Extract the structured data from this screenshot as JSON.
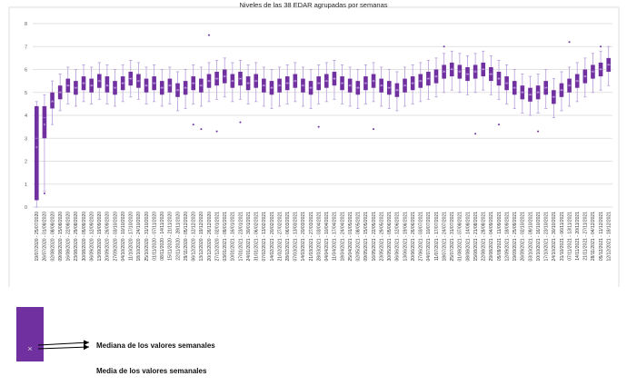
{
  "colors": {
    "box": "#7030a0",
    "whisker": "#b49ddb",
    "median_line": "#9d73c8",
    "mean_marker": "#d5c5ec",
    "grid": "#d9d9d9",
    "axis_text": "#595959",
    "tick_text": "#333333",
    "frame": "#dcdcdc"
  },
  "legend": {
    "swatch_color": "#7030a0",
    "x_mark": "×",
    "median_label": "Mediana de los valores semanales",
    "mean_label": "Media de los valores semanales"
  },
  "chart_data": {
    "type": "boxplot",
    "title": "Niveles de las 38 EDAR agrupadas por semanas",
    "ylabel": "",
    "xlabel": "",
    "ylim": [
      0,
      8
    ],
    "yticks": [
      0,
      1,
      2,
      3,
      4,
      5,
      6,
      7,
      8
    ],
    "grid": true,
    "boxes_format": [
      "low_whisker",
      "q1",
      "median",
      "q3",
      "high_whisker",
      "mean"
    ],
    "categories": [
      "19/07/2020 - 25/07/2020",
      "26/07/2020 - 01/08/2020",
      "02/08/2020 - 08/08/2020",
      "09/08/2020 - 15/08/2020",
      "16/08/2020 - 22/08/2020",
      "23/08/2020 - 29/08/2020",
      "30/08/2020 - 05/09/2020",
      "06/09/2020 - 12/09/2020",
      "13/09/2020 - 19/09/2020",
      "20/09/2020 - 26/09/2020",
      "27/09/2020 - 03/10/2020",
      "04/10/2020 - 10/10/2020",
      "11/10/2020 - 17/10/2020",
      "18/10/2020 - 24/10/2020",
      "25/10/2020 - 31/10/2020",
      "01/11/2020 - 07/11/2020",
      "08/11/2020 - 14/11/2020",
      "15/11/2020 - 21/11/2020",
      "22/11/2020 - 28/11/2020",
      "29/11/2020 - 05/12/2020",
      "06/12/2020 - 12/12/2020",
      "13/12/2020 - 19/12/2020",
      "20/12/2020 - 26/12/2020",
      "27/12/2020 - 02/01/2021",
      "03/01/2021 - 09/01/2021",
      "10/01/2021 - 16/01/2021",
      "17/01/2021 - 23/01/2021",
      "24/01/2021 - 30/01/2021",
      "31/01/2021 - 06/02/2021",
      "07/02/2021 - 13/02/2021",
      "14/02/2021 - 20/02/2021",
      "21/02/2021 - 27/02/2021",
      "28/02/2021 - 06/03/2021",
      "07/03/2021 - 13/03/2021",
      "14/03/2021 - 20/03/2021",
      "21/03/2021 - 27/03/2021",
      "28/03/2021 - 03/04/2021",
      "04/04/2021 - 10/04/2021",
      "11/04/2021 - 17/04/2021",
      "18/04/2021 - 24/04/2021",
      "25/04/2021 - 01/05/2021",
      "02/05/2021 - 08/05/2021",
      "09/05/2021 - 15/05/2021",
      "16/05/2021 - 22/05/2021",
      "23/05/2021 - 29/05/2021",
      "30/05/2021 - 05/06/2021",
      "06/06/2021 - 12/06/2021",
      "13/06/2021 - 19/06/2021",
      "20/06/2021 - 26/06/2021",
      "27/06/2021 - 03/07/2021",
      "04/07/2021 - 10/07/2021",
      "11/07/2021 - 17/07/2021",
      "18/07/2021 - 24/07/2021",
      "25/07/2021 - 31/07/2021",
      "01/08/2021 - 07/08/2021",
      "08/08/2021 - 14/08/2021",
      "15/08/2021 - 21/08/2021",
      "22/08/2021 - 28/08/2021",
      "29/08/2021 - 04/09/2021",
      "05/09/2021 - 11/09/2021",
      "12/09/2021 - 18/09/2021",
      "19/09/2021 - 25/09/2021",
      "26/09/2021 - 02/10/2021",
      "03/10/2021 - 09/10/2021",
      "10/10/2021 - 16/10/2021",
      "17/10/2021 - 23/10/2021",
      "24/10/2021 - 30/10/2021",
      "31/10/2021 - 06/11/2021",
      "07/11/2021 - 13/11/2021",
      "14/11/2021 - 20/11/2021",
      "21/11/2021 - 27/11/2021",
      "28/11/2021 - 04/12/2021",
      "05/12/2021 - 11/12/2021",
      "12/12/2021 - 18/12/2021"
    ],
    "boxes": [
      [
        0.0,
        0.3,
        3.0,
        4.4,
        4.6,
        2.6
      ],
      [
        0.7,
        3.0,
        3.9,
        4.4,
        4.9,
        3.6
      ],
      [
        3.6,
        4.3,
        4.6,
        5.0,
        5.5,
        4.6
      ],
      [
        4.2,
        4.7,
        5.0,
        5.3,
        5.8,
        5.0
      ],
      [
        4.5,
        5.0,
        5.3,
        5.6,
        6.1,
        5.3
      ],
      [
        4.4,
        4.9,
        5.2,
        5.5,
        6.0,
        5.2
      ],
      [
        4.6,
        5.1,
        5.4,
        5.7,
        6.2,
        5.4
      ],
      [
        4.5,
        5.0,
        5.3,
        5.6,
        6.1,
        5.3
      ],
      [
        4.7,
        5.2,
        5.5,
        5.8,
        6.3,
        5.5
      ],
      [
        4.5,
        5.0,
        5.3,
        5.7,
        6.2,
        5.3
      ],
      [
        4.4,
        4.9,
        5.2,
        5.5,
        6.0,
        5.2
      ],
      [
        4.6,
        5.1,
        5.4,
        5.7,
        6.2,
        5.4
      ],
      [
        4.8,
        5.3,
        5.6,
        5.9,
        6.4,
        5.6
      ],
      [
        4.7,
        5.2,
        5.5,
        5.8,
        6.3,
        5.5
      ],
      [
        4.5,
        5.0,
        5.3,
        5.6,
        6.1,
        5.3
      ],
      [
        4.6,
        5.1,
        5.4,
        5.7,
        6.2,
        5.4
      ],
      [
        4.4,
        4.9,
        5.2,
        5.5,
        6.0,
        5.2
      ],
      [
        4.5,
        5.0,
        5.3,
        5.6,
        6.1,
        5.3
      ],
      [
        4.2,
        4.8,
        5.1,
        5.4,
        5.9,
        5.1
      ],
      [
        4.3,
        4.9,
        5.2,
        5.5,
        6.0,
        5.2
      ],
      [
        4.5,
        5.1,
        5.4,
        5.7,
        6.2,
        5.4
      ],
      [
        4.4,
        5.0,
        5.3,
        5.6,
        6.1,
        5.3
      ],
      [
        4.6,
        5.2,
        5.5,
        5.8,
        6.3,
        5.5
      ],
      [
        4.7,
        5.3,
        5.6,
        5.9,
        6.4,
        5.6
      ],
      [
        4.8,
        5.4,
        5.7,
        6.0,
        6.5,
        5.7
      ],
      [
        4.6,
        5.2,
        5.5,
        5.8,
        6.3,
        5.5
      ],
      [
        4.7,
        5.3,
        5.6,
        5.9,
        6.4,
        5.6
      ],
      [
        4.5,
        5.1,
        5.4,
        5.7,
        6.2,
        5.4
      ],
      [
        4.6,
        5.2,
        5.5,
        5.8,
        6.3,
        5.5
      ],
      [
        4.4,
        5.0,
        5.3,
        5.6,
        6.1,
        5.3
      ],
      [
        4.3,
        4.9,
        5.2,
        5.5,
        6.0,
        5.2
      ],
      [
        4.4,
        5.0,
        5.3,
        5.6,
        6.1,
        5.3
      ],
      [
        4.5,
        5.1,
        5.4,
        5.7,
        6.2,
        5.4
      ],
      [
        4.6,
        5.2,
        5.5,
        5.8,
        6.3,
        5.5
      ],
      [
        4.4,
        5.0,
        5.3,
        5.6,
        6.1,
        5.3
      ],
      [
        4.3,
        4.9,
        5.2,
        5.5,
        6.0,
        5.2
      ],
      [
        4.5,
        5.1,
        5.4,
        5.7,
        6.2,
        5.4
      ],
      [
        4.6,
        5.2,
        5.5,
        5.8,
        6.3,
        5.5
      ],
      [
        4.7,
        5.3,
        5.6,
        5.9,
        6.4,
        5.6
      ],
      [
        4.5,
        5.1,
        5.4,
        5.7,
        6.2,
        5.4
      ],
      [
        4.4,
        5.0,
        5.3,
        5.6,
        6.1,
        5.3
      ],
      [
        4.3,
        4.9,
        5.2,
        5.5,
        6.0,
        5.2
      ],
      [
        4.5,
        5.1,
        5.4,
        5.7,
        6.2,
        5.4
      ],
      [
        4.6,
        5.2,
        5.5,
        5.8,
        6.3,
        5.5
      ],
      [
        4.4,
        5.0,
        5.3,
        5.6,
        6.1,
        5.3
      ],
      [
        4.3,
        4.9,
        5.2,
        5.5,
        6.0,
        5.2
      ],
      [
        4.2,
        4.8,
        5.1,
        5.4,
        5.9,
        5.1
      ],
      [
        4.4,
        5.0,
        5.3,
        5.6,
        6.1,
        5.3
      ],
      [
        4.5,
        5.1,
        5.4,
        5.7,
        6.2,
        5.4
      ],
      [
        4.6,
        5.2,
        5.5,
        5.8,
        6.3,
        5.5
      ],
      [
        4.7,
        5.3,
        5.6,
        5.9,
        6.4,
        5.6
      ],
      [
        4.8,
        5.4,
        5.7,
        6.0,
        6.5,
        5.7
      ],
      [
        5.0,
        5.6,
        5.9,
        6.2,
        6.7,
        5.9
      ],
      [
        5.1,
        5.7,
        6.0,
        6.3,
        6.8,
        6.0
      ],
      [
        5.0,
        5.6,
        5.9,
        6.2,
        6.7,
        5.9
      ],
      [
        4.9,
        5.5,
        5.8,
        6.1,
        6.6,
        5.8
      ],
      [
        5.0,
        5.6,
        5.9,
        6.2,
        6.7,
        5.9
      ],
      [
        5.1,
        5.7,
        6.0,
        6.3,
        6.8,
        6.0
      ],
      [
        4.9,
        5.5,
        5.8,
        6.1,
        6.6,
        5.8
      ],
      [
        4.7,
        5.3,
        5.6,
        5.9,
        6.4,
        5.6
      ],
      [
        4.5,
        5.1,
        5.4,
        5.7,
        6.2,
        5.4
      ],
      [
        4.3,
        4.9,
        5.2,
        5.5,
        6.0,
        5.2
      ],
      [
        4.1,
        4.7,
        5.0,
        5.3,
        5.8,
        5.0
      ],
      [
        4.0,
        4.6,
        4.9,
        5.2,
        5.7,
        4.9
      ],
      [
        4.1,
        4.7,
        5.0,
        5.3,
        5.8,
        5.0
      ],
      [
        4.3,
        4.9,
        5.2,
        5.5,
        6.0,
        5.2
      ],
      [
        3.9,
        4.5,
        4.8,
        5.1,
        5.6,
        4.8
      ],
      [
        4.2,
        4.8,
        5.1,
        5.4,
        5.9,
        5.1
      ],
      [
        4.4,
        5.0,
        5.3,
        5.6,
        6.1,
        5.3
      ],
      [
        4.6,
        5.2,
        5.5,
        5.8,
        6.3,
        5.5
      ],
      [
        4.8,
        5.4,
        5.7,
        6.0,
        6.5,
        5.7
      ],
      [
        5.0,
        5.6,
        5.9,
        6.2,
        6.7,
        5.9
      ],
      [
        5.1,
        5.7,
        6.0,
        6.3,
        6.8,
        6.0
      ],
      [
        5.3,
        5.9,
        6.2,
        6.5,
        7.0,
        6.2
      ]
    ],
    "outliers": [
      [
        1,
        0.6
      ],
      [
        20,
        3.6
      ],
      [
        21,
        3.4
      ],
      [
        22,
        7.5
      ],
      [
        23,
        3.3
      ],
      [
        26,
        3.7
      ],
      [
        36,
        3.5
      ],
      [
        43,
        3.4
      ],
      [
        52,
        7.0
      ],
      [
        56,
        3.2
      ],
      [
        59,
        3.6
      ],
      [
        64,
        3.3
      ],
      [
        68,
        7.2
      ],
      [
        72,
        7.0
      ]
    ]
  }
}
